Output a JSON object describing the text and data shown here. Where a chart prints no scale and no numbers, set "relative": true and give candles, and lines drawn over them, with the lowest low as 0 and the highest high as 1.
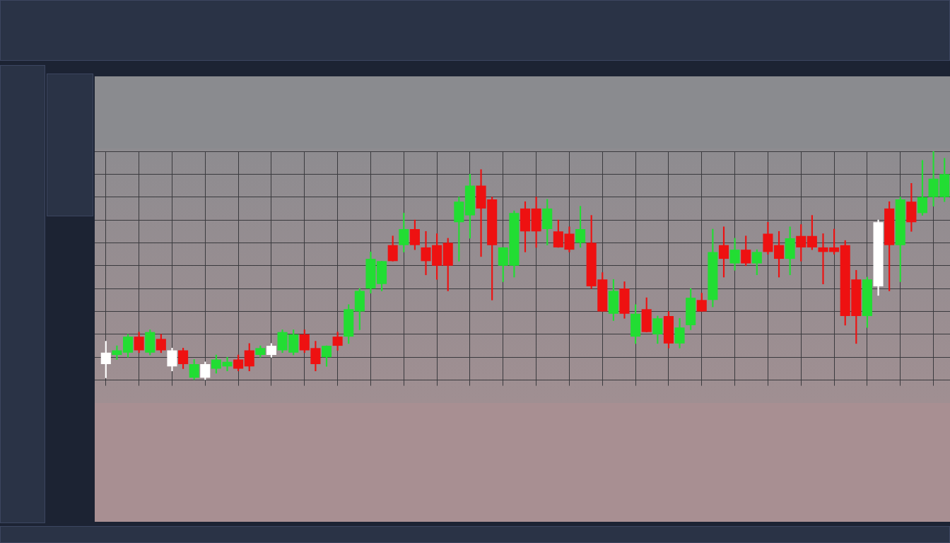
{
  "chart_data": {
    "type": "candlestick",
    "relative": true,
    "grid": true,
    "legend": false,
    "categories": [
      null,
      null,
      null,
      null,
      null,
      null,
      null,
      null,
      null,
      null,
      null,
      null,
      null,
      null,
      null,
      null,
      null,
      null,
      null,
      null,
      null,
      null,
      null,
      null,
      null,
      null,
      null,
      null,
      null,
      null,
      null,
      null,
      null,
      null,
      null,
      null,
      null,
      null,
      null,
      null,
      null,
      null,
      null,
      null,
      null,
      null,
      null,
      null,
      null,
      null,
      null,
      null,
      null,
      null,
      null,
      null,
      null,
      null,
      null,
      null,
      null,
      null,
      null,
      null,
      null,
      null,
      null,
      null,
      null,
      null,
      null,
      null,
      null,
      null,
      null,
      null,
      null
    ],
    "ohlc": [
      [
        0.07,
        0.17,
        0.01,
        0.12
      ],
      [
        0.11,
        0.15,
        0.09,
        0.13
      ],
      [
        0.12,
        0.2,
        0.1,
        0.19
      ],
      [
        0.19,
        0.21,
        0.12,
        0.13
      ],
      [
        0.12,
        0.22,
        0.11,
        0.21
      ],
      [
        0.18,
        0.2,
        0.12,
        0.13
      ],
      [
        0.06,
        0.14,
        0.04,
        0.13
      ],
      [
        0.13,
        0.14,
        0.05,
        0.07
      ],
      [
        0.01,
        0.09,
        0,
        0.07
      ],
      [
        0.01,
        0.08,
        0,
        0.07
      ],
      [
        0.05,
        0.11,
        0.03,
        0.09
      ],
      [
        0.06,
        0.1,
        0.04,
        0.08
      ],
      [
        0.09,
        0.11,
        0.04,
        0.05
      ],
      [
        0.13,
        0.16,
        0.04,
        0.06
      ],
      [
        0.11,
        0.15,
        0.1,
        0.14
      ],
      [
        0.11,
        0.16,
        0.1,
        0.15
      ],
      [
        0.13,
        0.22,
        0.12,
        0.21
      ],
      [
        0.12,
        0.22,
        0.11,
        0.2
      ],
      [
        0.2,
        0.22,
        0.12,
        0.13
      ],
      [
        0.14,
        0.17,
        0.04,
        0.07
      ],
      [
        0.1,
        0.15,
        0.06,
        0.15
      ],
      [
        0.19,
        0.21,
        0.13,
        0.15
      ],
      [
        0.19,
        0.33,
        0.16,
        0.31
      ],
      [
        0.3,
        0.4,
        0.22,
        0.39
      ],
      [
        0.4,
        0.56,
        0.38,
        0.53
      ],
      [
        0.42,
        0.52,
        0.39,
        0.52
      ],
      [
        0.59,
        0.63,
        0.52,
        0.52
      ],
      [
        0.59,
        0.73,
        0.56,
        0.66
      ],
      [
        0.66,
        0.7,
        0.57,
        0.59
      ],
      [
        0.58,
        0.65,
        0.46,
        0.52
      ],
      [
        0.59,
        0.64,
        0.44,
        0.5
      ],
      [
        0.6,
        0.62,
        0.39,
        0.5
      ],
      [
        0.69,
        0.8,
        0.52,
        0.78
      ],
      [
        0.72,
        0.9,
        0.62,
        0.85
      ],
      [
        0.85,
        0.92,
        0.54,
        0.75
      ],
      [
        0.79,
        0.8,
        0.35,
        0.59
      ],
      [
        0.5,
        0.58,
        0.43,
        0.58
      ],
      [
        0.5,
        0.74,
        0.45,
        0.73
      ],
      [
        0.75,
        0.78,
        0.56,
        0.65
      ],
      [
        0.75,
        0.8,
        0.58,
        0.65
      ],
      [
        0.66,
        0.79,
        0.59,
        0.75
      ],
      [
        0.65,
        0.7,
        0.58,
        0.58
      ],
      [
        0.64,
        0.67,
        0.56,
        0.57
      ],
      [
        0.6,
        0.76,
        0.58,
        0.66
      ],
      [
        0.6,
        0.72,
        0.4,
        0.41
      ],
      [
        0.44,
        0.47,
        0.3,
        0.3
      ],
      [
        0.29,
        0.44,
        0.26,
        0.39
      ],
      [
        0.4,
        0.43,
        0.27,
        0.29
      ],
      [
        0.19,
        0.33,
        0.16,
        0.29
      ],
      [
        0.31,
        0.36,
        0.21,
        0.21
      ],
      [
        0.2,
        0.28,
        0.16,
        0.27
      ],
      [
        0.28,
        0.3,
        0.14,
        0.16
      ],
      [
        0.16,
        0.27,
        0.14,
        0.23
      ],
      [
        0.24,
        0.4,
        0.22,
        0.36
      ],
      [
        0.35,
        0.38,
        0.3,
        0.3
      ],
      [
        0.35,
        0.66,
        0.32,
        0.56
      ],
      [
        0.59,
        0.67,
        0.45,
        0.53
      ],
      [
        0.51,
        0.62,
        0.48,
        0.57
      ],
      [
        0.57,
        0.63,
        0.5,
        0.51
      ],
      [
        0.51,
        0.57,
        0.46,
        0.56
      ],
      [
        0.64,
        0.69,
        0.55,
        0.56
      ],
      [
        0.59,
        0.65,
        0.45,
        0.53
      ],
      [
        0.53,
        0.67,
        0.46,
        0.62
      ],
      [
        0.63,
        0.68,
        0.52,
        0.58
      ],
      [
        0.63,
        0.72,
        0.57,
        0.58
      ],
      [
        0.58,
        0.64,
        0.42,
        0.56
      ],
      [
        0.58,
        0.66,
        0.55,
        0.56
      ],
      [
        0.59,
        0.61,
        0.24,
        0.28
      ],
      [
        0.44,
        0.48,
        0.16,
        0.28
      ],
      [
        0.28,
        0.45,
        0.23,
        0.44
      ],
      [
        0.41,
        0.7,
        0.37,
        0.69
      ],
      [
        0.75,
        0.78,
        0.39,
        0.59
      ],
      [
        0.59,
        0.8,
        0.43,
        0.79
      ],
      [
        0.78,
        0.86,
        0.65,
        0.69
      ],
      [
        0.73,
        0.96,
        0.72,
        0.8
      ],
      [
        0.8,
        1,
        0.76,
        0.88
      ],
      [
        0.8,
        0.97,
        0.78,
        0.9
      ]
    ],
    "colors": [
      "#ffffff",
      "#22dd33",
      "#22dd33",
      "#ee1111",
      "#22dd33",
      "#ee1111",
      "#ffffff",
      "#ee1111",
      "#22dd33",
      "#ffffff",
      "#22dd33",
      "#22dd33",
      "#ee1111",
      "#ee1111",
      "#22dd33",
      "#ffffff",
      "#22dd33",
      "#22dd33",
      "#ee1111",
      "#ee1111",
      "#22dd33",
      "#ee1111",
      "#22dd33",
      "#22dd33",
      "#22dd33",
      "#22dd33",
      "#ee1111",
      "#22dd33",
      "#ee1111",
      "#ee1111",
      "#ee1111",
      "#ee1111",
      "#22dd33",
      "#22dd33",
      "#ee1111",
      "#ee1111",
      "#22dd33",
      "#22dd33",
      "#ee1111",
      "#ee1111",
      "#22dd33",
      "#ee1111",
      "#ee1111",
      "#22dd33",
      "#ee1111",
      "#ee1111",
      "#22dd33",
      "#ee1111",
      "#22dd33",
      "#ee1111",
      "#22dd33",
      "#ee1111",
      "#22dd33",
      "#22dd33",
      "#ee1111",
      "#22dd33",
      "#ee1111",
      "#22dd33",
      "#ee1111",
      "#22dd33",
      "#ee1111",
      "#ee1111",
      "#22dd33",
      "#ee1111",
      "#ee1111",
      "#ee1111",
      "#ee1111",
      "#ee1111",
      "#ee1111",
      "#22dd33",
      "#ffffff",
      "#ee1111",
      "#22dd33",
      "#ee1111",
      "#22dd33",
      "#22dd33",
      "#22dd33"
    ]
  }
}
